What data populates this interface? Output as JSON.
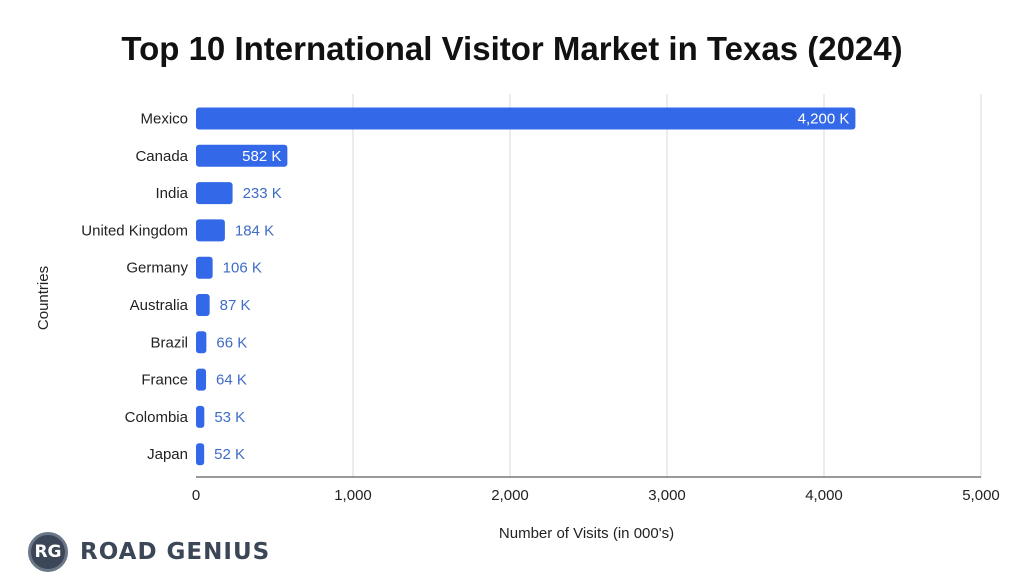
{
  "chart_data": {
    "type": "bar",
    "orientation": "horizontal",
    "title": "Top 10 International Visitor Market in Texas (2024)",
    "xlabel": "Number of Visits (in 000's)",
    "ylabel": "Countries",
    "xlim": [
      0,
      5000
    ],
    "xticks": [
      "0",
      "1,000",
      "2,000",
      "3,000",
      "4,000",
      "5,000"
    ],
    "xtick_values": [
      0,
      1000,
      2000,
      3000,
      4000,
      5000
    ],
    "grid": true,
    "categories": [
      "Mexico",
      "Canada",
      "India",
      "United Kingdom",
      "Germany",
      "Australia",
      "Brazil",
      "France",
      "Colombia",
      "Japan"
    ],
    "values": [
      4200,
      582,
      233,
      184,
      106,
      87,
      66,
      64,
      53,
      52
    ],
    "data_labels": [
      "4,200 K",
      "582 K",
      "233 K",
      "184 K",
      "106 K",
      "87 K",
      "66 K",
      "64 K",
      "53 K",
      "52 K"
    ],
    "bar_color": "#3369e8",
    "label_color_outside": "#3f6cc6",
    "label_color_inside": "#ffffff"
  },
  "logo": {
    "badge": "RG",
    "text": "ROAD GENIUS"
  }
}
